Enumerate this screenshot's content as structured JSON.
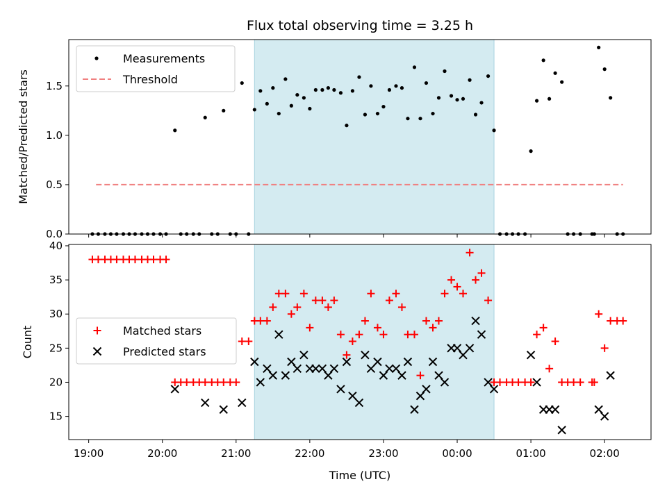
{
  "chart_data": [
    {
      "type": "scatter",
      "title": "Flux total observing time = 3.25 h",
      "xlabel": "",
      "ylabel": "Matched/Predicted stars",
      "ylim": [
        0,
        1.97
      ],
      "yticks": [
        0.0,
        0.5,
        1.0,
        1.5
      ],
      "ytick_labels": [
        "0.0",
        "0.5",
        "1.0",
        "1.5"
      ],
      "xlim_hours": [
        -0.27,
        7.63
      ],
      "shaded_span_hours": [
        2.25,
        5.5
      ],
      "shade_color": "#d4ebf1",
      "legend": {
        "placement": "upper-left",
        "entries": [
          "Measurements",
          "Threshold"
        ]
      },
      "series": [
        {
          "name": "Measurements",
          "marker": "dot",
          "color": "#000000",
          "points": [
            [
              0.05,
              0
            ],
            [
              0.13,
              0
            ],
            [
              0.22,
              0
            ],
            [
              0.3,
              0
            ],
            [
              0.38,
              0
            ],
            [
              0.47,
              0
            ],
            [
              0.55,
              0
            ],
            [
              0.63,
              0
            ],
            [
              0.72,
              0
            ],
            [
              0.8,
              0
            ],
            [
              0.88,
              0
            ],
            [
              0.97,
              0
            ],
            [
              1.05,
              0
            ],
            [
              1.17,
              1.05
            ],
            [
              1.25,
              0
            ],
            [
              1.33,
              0
            ],
            [
              1.42,
              0
            ],
            [
              1.5,
              0
            ],
            [
              1.58,
              1.18
            ],
            [
              1.67,
              0
            ],
            [
              1.75,
              0
            ],
            [
              1.83,
              1.25
            ],
            [
              1.92,
              0
            ],
            [
              2.0,
              0
            ],
            [
              2.08,
              1.53
            ],
            [
              2.17,
              0
            ],
            [
              2.25,
              1.26
            ],
            [
              2.33,
              1.45
            ],
            [
              2.42,
              1.32
            ],
            [
              2.5,
              1.48
            ],
            [
              2.58,
              1.22
            ],
            [
              2.67,
              1.57
            ],
            [
              2.75,
              1.3
            ],
            [
              2.83,
              1.41
            ],
            [
              2.92,
              1.38
            ],
            [
              3.0,
              1.27
            ],
            [
              3.08,
              1.46
            ],
            [
              3.17,
              1.46
            ],
            [
              3.25,
              1.48
            ],
            [
              3.33,
              1.46
            ],
            [
              3.42,
              1.43
            ],
            [
              3.5,
              1.1
            ],
            [
              3.58,
              1.45
            ],
            [
              3.67,
              1.59
            ],
            [
              3.75,
              1.21
            ],
            [
              3.83,
              1.5
            ],
            [
              3.92,
              1.22
            ],
            [
              4.0,
              1.29
            ],
            [
              4.08,
              1.46
            ],
            [
              4.17,
              1.5
            ],
            [
              4.25,
              1.48
            ],
            [
              4.33,
              1.17
            ],
            [
              4.42,
              1.69
            ],
            [
              4.5,
              1.17
            ],
            [
              4.58,
              1.53
            ],
            [
              4.67,
              1.22
            ],
            [
              4.75,
              1.38
            ],
            [
              4.83,
              1.65
            ],
            [
              4.92,
              1.4
            ],
            [
              5.0,
              1.36
            ],
            [
              5.08,
              1.37
            ],
            [
              5.17,
              1.56
            ],
            [
              5.25,
              1.21
            ],
            [
              5.33,
              1.33
            ],
            [
              5.42,
              1.6
            ],
            [
              5.5,
              1.05
            ],
            [
              5.58,
              0
            ],
            [
              5.67,
              0
            ],
            [
              5.75,
              0
            ],
            [
              5.83,
              0
            ],
            [
              5.92,
              0
            ],
            [
              6.0,
              0.84
            ],
            [
              6.08,
              1.35
            ],
            [
              6.17,
              1.76
            ],
            [
              6.25,
              1.37
            ],
            [
              6.33,
              1.63
            ],
            [
              6.42,
              1.54
            ],
            [
              6.5,
              0
            ],
            [
              6.58,
              0
            ],
            [
              6.67,
              0
            ],
            [
              6.83,
              0
            ],
            [
              6.86,
              0
            ],
            [
              6.92,
              1.89
            ],
            [
              7.0,
              1.67
            ],
            [
              7.08,
              1.38
            ],
            [
              7.17,
              0
            ],
            [
              7.25,
              0
            ]
          ]
        },
        {
          "name": "Threshold",
          "marker": "dashed-line",
          "color": "#f08080",
          "x_range_hours": [
            0.1,
            7.25
          ],
          "value": 0.5
        }
      ]
    },
    {
      "type": "scatter",
      "title": "",
      "xlabel": "Time (UTC)",
      "ylabel": "Count",
      "ylim": [
        11.6,
        40.2
      ],
      "yticks": [
        15,
        20,
        25,
        30,
        35,
        40
      ],
      "ytick_labels": [
        "15",
        "20",
        "25",
        "30",
        "35",
        "40"
      ],
      "xlim_hours": [
        -0.27,
        7.63
      ],
      "xticks_hours": [
        0,
        1,
        2,
        3,
        4,
        5,
        6,
        7
      ],
      "xtick_labels": [
        "19:00",
        "20:00",
        "21:00",
        "22:00",
        "23:00",
        "00:00",
        "01:00",
        "02:00"
      ],
      "shaded_span_hours": [
        2.25,
        5.5
      ],
      "shade_color": "#d4ebf1",
      "legend": {
        "placement": "center-left",
        "entries": [
          "Matched stars",
          "Predicted stars"
        ]
      },
      "series": [
        {
          "name": "Matched stars",
          "marker": "plus",
          "color": "#ff0000",
          "points": [
            [
              0.05,
              38
            ],
            [
              0.13,
              38
            ],
            [
              0.22,
              38
            ],
            [
              0.3,
              38
            ],
            [
              0.38,
              38
            ],
            [
              0.47,
              38
            ],
            [
              0.55,
              38
            ],
            [
              0.63,
              38
            ],
            [
              0.72,
              38
            ],
            [
              0.8,
              38
            ],
            [
              0.88,
              38
            ],
            [
              0.97,
              38
            ],
            [
              1.05,
              38
            ],
            [
              1.17,
              20
            ],
            [
              1.25,
              20
            ],
            [
              1.33,
              20
            ],
            [
              1.42,
              20
            ],
            [
              1.5,
              20
            ],
            [
              1.58,
              20
            ],
            [
              1.67,
              20
            ],
            [
              1.75,
              20
            ],
            [
              1.83,
              20
            ],
            [
              1.92,
              20
            ],
            [
              2.0,
              20
            ],
            [
              2.08,
              26
            ],
            [
              2.17,
              26
            ],
            [
              2.25,
              29
            ],
            [
              2.33,
              29
            ],
            [
              2.42,
              29
            ],
            [
              2.5,
              31
            ],
            [
              2.58,
              33
            ],
            [
              2.67,
              33
            ],
            [
              2.75,
              30
            ],
            [
              2.83,
              31
            ],
            [
              2.92,
              33
            ],
            [
              3.0,
              28
            ],
            [
              3.08,
              32
            ],
            [
              3.17,
              32
            ],
            [
              3.25,
              31
            ],
            [
              3.33,
              32
            ],
            [
              3.42,
              27
            ],
            [
              3.5,
              24
            ],
            [
              3.58,
              26
            ],
            [
              3.67,
              27
            ],
            [
              3.75,
              29
            ],
            [
              3.83,
              33
            ],
            [
              3.92,
              28
            ],
            [
              4.0,
              27
            ],
            [
              4.08,
              32
            ],
            [
              4.17,
              33
            ],
            [
              4.25,
              31
            ],
            [
              4.33,
              27
            ],
            [
              4.42,
              27
            ],
            [
              4.5,
              21
            ],
            [
              4.58,
              29
            ],
            [
              4.67,
              28
            ],
            [
              4.75,
              29
            ],
            [
              4.83,
              33
            ],
            [
              4.92,
              35
            ],
            [
              5.0,
              34
            ],
            [
              5.08,
              33
            ],
            [
              5.17,
              39
            ],
            [
              5.25,
              35
            ],
            [
              5.33,
              36
            ],
            [
              5.42,
              32
            ],
            [
              5.5,
              20
            ],
            [
              5.58,
              20
            ],
            [
              5.67,
              20
            ],
            [
              5.75,
              20
            ],
            [
              5.83,
              20
            ],
            [
              5.92,
              20
            ],
            [
              6.0,
              20
            ],
            [
              6.08,
              27
            ],
            [
              6.17,
              28
            ],
            [
              6.25,
              22
            ],
            [
              6.33,
              26
            ],
            [
              6.42,
              20
            ],
            [
              6.5,
              20
            ],
            [
              6.58,
              20
            ],
            [
              6.67,
              20
            ],
            [
              6.83,
              20
            ],
            [
              6.86,
              20
            ],
            [
              6.92,
              30
            ],
            [
              7.0,
              25
            ],
            [
              7.08,
              29
            ],
            [
              7.17,
              29
            ],
            [
              7.25,
              29
            ]
          ]
        },
        {
          "name": "Predicted stars",
          "marker": "x",
          "color": "#000000",
          "points": [
            [
              1.17,
              19
            ],
            [
              1.58,
              17
            ],
            [
              1.83,
              16
            ],
            [
              2.08,
              17
            ],
            [
              2.25,
              23
            ],
            [
              2.33,
              20
            ],
            [
              2.42,
              22
            ],
            [
              2.5,
              21
            ],
            [
              2.58,
              27
            ],
            [
              2.67,
              21
            ],
            [
              2.75,
              23
            ],
            [
              2.83,
              22
            ],
            [
              2.92,
              24
            ],
            [
              3.0,
              22
            ],
            [
              3.08,
              22
            ],
            [
              3.17,
              22
            ],
            [
              3.25,
              21
            ],
            [
              3.33,
              22
            ],
            [
              3.42,
              19
            ],
            [
              3.5,
              23
            ],
            [
              3.58,
              18
            ],
            [
              3.67,
              17
            ],
            [
              3.75,
              24
            ],
            [
              3.83,
              22
            ],
            [
              3.92,
              23
            ],
            [
              4.0,
              21
            ],
            [
              4.08,
              22
            ],
            [
              4.17,
              22
            ],
            [
              4.25,
              21
            ],
            [
              4.33,
              23
            ],
            [
              4.42,
              16
            ],
            [
              4.5,
              18
            ],
            [
              4.58,
              19
            ],
            [
              4.67,
              23
            ],
            [
              4.75,
              21
            ],
            [
              4.83,
              20
            ],
            [
              4.92,
              25
            ],
            [
              5.0,
              25
            ],
            [
              5.08,
              24
            ],
            [
              5.17,
              25
            ],
            [
              5.25,
              29
            ],
            [
              5.33,
              27
            ],
            [
              5.42,
              20
            ],
            [
              5.5,
              19
            ],
            [
              6.0,
              24
            ],
            [
              6.08,
              20
            ],
            [
              6.17,
              16
            ],
            [
              6.25,
              16
            ],
            [
              6.33,
              16
            ],
            [
              6.42,
              13
            ],
            [
              6.92,
              16
            ],
            [
              7.0,
              15
            ],
            [
              7.08,
              21
            ]
          ]
        }
      ]
    }
  ]
}
